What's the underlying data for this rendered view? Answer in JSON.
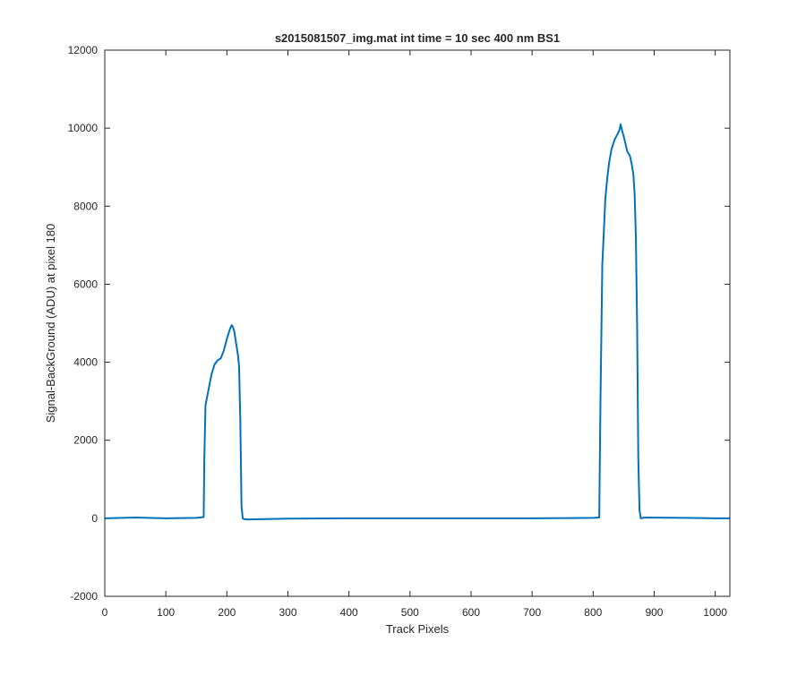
{
  "chart_data": {
    "type": "line",
    "title": "s2015081507_img.mat int time = 10 sec  400 nm BS1",
    "xlabel": "Track Pixels",
    "ylabel": "Signal-BackGround (ADU) at pixel 180",
    "xlim": [
      0,
      1024
    ],
    "ylim": [
      -2000,
      12000
    ],
    "xticks": [
      0,
      100,
      200,
      300,
      400,
      500,
      600,
      700,
      800,
      900,
      1000
    ],
    "yticks": [
      -2000,
      0,
      2000,
      4000,
      6000,
      8000,
      10000,
      12000
    ],
    "xtick_labels": [
      "0",
      "100",
      "200",
      "300",
      "400",
      "500",
      "600",
      "700",
      "800",
      "900",
      "1000"
    ],
    "ytick_labels": [
      "-2000",
      "0",
      "2000",
      "4000",
      "6000",
      "8000",
      "10000",
      "12000"
    ],
    "grid": false,
    "legend": "none",
    "series": [
      {
        "color": "#0072BD",
        "x": [
          0,
          50,
          100,
          150,
          162,
          163,
          165,
          170,
          175,
          180,
          185,
          190,
          195,
          200,
          205,
          208,
          210,
          212,
          215,
          218,
          220,
          222,
          224,
          226,
          228,
          235,
          300,
          400,
          500,
          600,
          700,
          800,
          810,
          812,
          815,
          818,
          820,
          823,
          826,
          830,
          835,
          840,
          843,
          845,
          848,
          850,
          853,
          856,
          860,
          863,
          866,
          868,
          870,
          872,
          874,
          876,
          878,
          885,
          950,
          1000,
          1024
        ],
        "y": [
          0,
          20,
          0,
          10,
          30,
          1500,
          2900,
          3300,
          3700,
          3950,
          4050,
          4100,
          4300,
          4600,
          4850,
          4950,
          4900,
          4800,
          4500,
          4200,
          3900,
          2500,
          300,
          0,
          -20,
          -30,
          -10,
          0,
          0,
          0,
          0,
          10,
          20,
          3000,
          6500,
          7500,
          8200,
          8700,
          9100,
          9450,
          9700,
          9850,
          9950,
          10100,
          9900,
          9800,
          9600,
          9400,
          9300,
          9100,
          8800,
          8300,
          7200,
          5000,
          1500,
          200,
          0,
          20,
          10,
          0,
          0
        ]
      }
    ]
  }
}
